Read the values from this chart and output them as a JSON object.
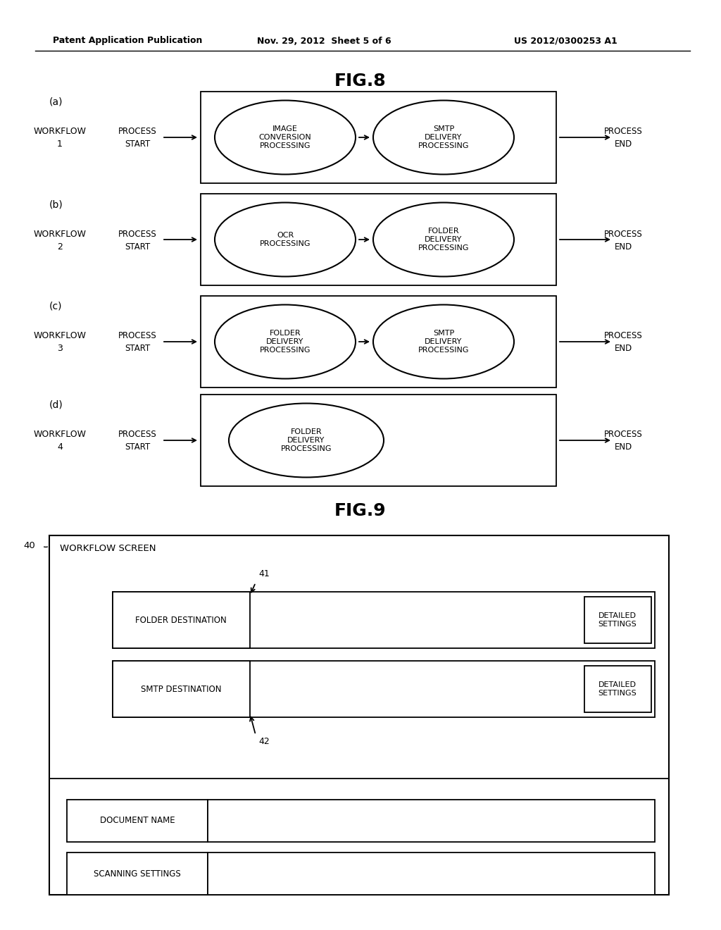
{
  "bg_color": "#ffffff",
  "header_left": "Patent Application Publication",
  "header_mid": "Nov. 29, 2012  Sheet 5 of 6",
  "header_right": "US 2012/0300253 A1",
  "fig8_title": "FIG.8",
  "fig9_title": "FIG.9",
  "workflows": [
    {
      "label": "(a)",
      "wf_line1": "WORKFLOW",
      "wf_line2": "1",
      "proc_start_line1": "PROCESS",
      "proc_start_line2": "START",
      "ellipses": [
        "IMAGE\nCONVERSION\nPROCESSING",
        "SMTP\nDELIVERY\nPROCESSING"
      ],
      "proc_end_line1": "PROCESS",
      "proc_end_line2": "END"
    },
    {
      "label": "(b)",
      "wf_line1": "WORKFLOW",
      "wf_line2": "2",
      "proc_start_line1": "PROCESS",
      "proc_start_line2": "START",
      "ellipses": [
        "OCR\nPROCESSING",
        "FOLDER\nDELIVERY\nPROCESSING"
      ],
      "proc_end_line1": "PROCESS",
      "proc_end_line2": "END"
    },
    {
      "label": "(c)",
      "wf_line1": "WORKFLOW",
      "wf_line2": "3",
      "proc_start_line1": "PROCESS",
      "proc_start_line2": "START",
      "ellipses": [
        "FOLDER\nDELIVERY\nPROCESSING",
        "SMTP\nDELIVERY\nPROCESSING"
      ],
      "proc_end_line1": "PROCESS",
      "proc_end_line2": "END"
    },
    {
      "label": "(d)",
      "wf_line1": "WORKFLOW",
      "wf_line2": "4",
      "proc_start_line1": "PROCESS",
      "proc_start_line2": "START",
      "ellipses": [
        "FOLDER\nDELIVERY\nPROCESSING"
      ],
      "proc_end_line1": "PROCESS",
      "proc_end_line2": "END"
    }
  ],
  "fig9": {
    "screen_label": "40",
    "screen_title": "WORKFLOW SCREEN",
    "arrow41_label": "41",
    "arrow42_label": "42",
    "rows_top": [
      {
        "label": "FOLDER DESTINATION",
        "button": "DETAILED\nSETTINGS"
      },
      {
        "label": "SMTP DESTINATION",
        "button": "DETAILED\nSETTINGS"
      }
    ],
    "rows_bottom": [
      {
        "label": "DOCUMENT NAME"
      },
      {
        "label": "SCANNING SETTINGS"
      }
    ]
  }
}
